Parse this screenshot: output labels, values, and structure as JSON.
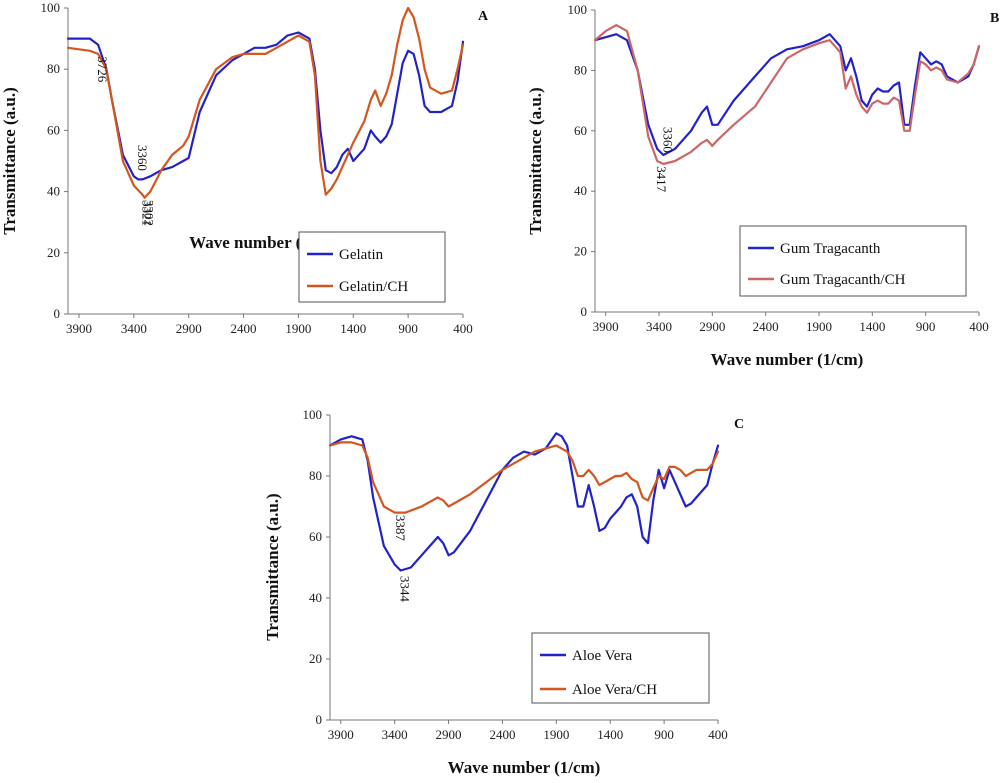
{
  "chart_data": [
    {
      "panel": "A",
      "type": "line",
      "xlabel": "Wave number  (1/cm)",
      "ylabel": "Transmittance  (a.u.)",
      "xlim": [
        4000,
        400
      ],
      "ylim": [
        0,
        100
      ],
      "xticks": [
        3900,
        3400,
        2900,
        2400,
        1900,
        1400,
        900,
        400
      ],
      "yticks": [
        0,
        20,
        40,
        60,
        80,
        100
      ],
      "legend": "bottom-right",
      "series": [
        {
          "name": "Gelatin",
          "color": "#2222cc",
          "x": [
            4000,
            3800,
            3726,
            3650,
            3600,
            3500,
            3400,
            3360,
            3321,
            3250,
            3150,
            3050,
            2950,
            2900,
            2800,
            2650,
            2500,
            2400,
            2300,
            2200,
            2100,
            2000,
            1900,
            1800,
            1750,
            1700,
            1650,
            1600,
            1550,
            1500,
            1450,
            1400,
            1300,
            1240,
            1200,
            1150,
            1100,
            1050,
            1000,
            950,
            900,
            850,
            800,
            750,
            700,
            600,
            500,
            450,
            400
          ],
          "y": [
            90,
            90,
            88,
            80,
            70,
            52,
            45,
            44,
            44,
            45,
            47,
            48,
            50,
            51,
            66,
            78,
            83,
            85,
            87,
            87,
            88,
            91,
            92,
            90,
            80,
            60,
            47,
            46,
            48,
            52,
            54,
            50,
            54,
            60,
            58,
            56,
            58,
            62,
            72,
            82,
            86,
            85,
            78,
            68,
            66,
            66,
            68,
            76,
            89
          ]
        },
        {
          "name": "Gelatin/CH",
          "color": "#d2561e",
          "x": [
            4000,
            3800,
            3726,
            3650,
            3600,
            3500,
            3400,
            3321,
            3302,
            3250,
            3150,
            3050,
            2950,
            2900,
            2800,
            2650,
            2500,
            2400,
            2300,
            2200,
            2100,
            2000,
            1900,
            1800,
            1750,
            1700,
            1650,
            1600,
            1550,
            1500,
            1450,
            1400,
            1300,
            1240,
            1200,
            1150,
            1100,
            1050,
            1000,
            950,
            900,
            850,
            800,
            750,
            700,
            600,
            500,
            450,
            400
          ],
          "y": [
            87,
            86,
            85,
            80,
            70,
            50,
            42,
            39,
            38,
            40,
            47,
            52,
            55,
            58,
            70,
            80,
            84,
            85,
            85,
            85,
            87,
            89,
            91,
            89,
            78,
            50,
            39,
            41,
            44,
            48,
            52,
            56,
            63,
            70,
            73,
            68,
            72,
            78,
            88,
            96,
            100,
            97,
            90,
            80,
            74,
            72,
            73,
            80,
            88
          ]
        }
      ],
      "annotations": [
        "3726",
        "3360",
        "3321",
        "3302"
      ]
    },
    {
      "panel": "B",
      "type": "line",
      "xlabel": "Wave number  (1/cm)",
      "ylabel": "Transmittance  (a.u.)",
      "xlim": [
        4000,
        400
      ],
      "ylim": [
        0,
        100
      ],
      "xticks": [
        3900,
        3400,
        2900,
        2400,
        1900,
        1400,
        900,
        400
      ],
      "yticks": [
        0,
        20,
        40,
        60,
        80,
        100
      ],
      "legend": "bottom-right",
      "series": [
        {
          "name": "Gum Tragacanth",
          "color": "#2222cc",
          "x": [
            4000,
            3900,
            3800,
            3700,
            3600,
            3500,
            3417,
            3360,
            3250,
            3100,
            3000,
            2950,
            2900,
            2850,
            2700,
            2500,
            2350,
            2200,
            2050,
            1900,
            1800,
            1700,
            1650,
            1600,
            1550,
            1500,
            1450,
            1400,
            1350,
            1300,
            1250,
            1200,
            1150,
            1100,
            1050,
            1000,
            950,
            900,
            850,
            800,
            750,
            700,
            600,
            500,
            450,
            400
          ],
          "y": [
            90,
            91,
            92,
            90,
            80,
            62,
            54,
            52,
            54,
            60,
            66,
            68,
            62,
            62,
            70,
            78,
            84,
            87,
            88,
            90,
            92,
            88,
            80,
            84,
            78,
            70,
            68,
            72,
            74,
            73,
            73,
            75,
            76,
            62,
            62,
            75,
            86,
            84,
            82,
            83,
            82,
            78,
            76,
            78,
            82,
            88
          ]
        },
        {
          "name": "Gum Tragacanth/CH",
          "color": "#cc6666",
          "x": [
            4000,
            3900,
            3800,
            3700,
            3600,
            3500,
            3417,
            3360,
            3250,
            3100,
            3000,
            2950,
            2900,
            2850,
            2700,
            2500,
            2350,
            2200,
            2050,
            1900,
            1800,
            1700,
            1650,
            1600,
            1550,
            1500,
            1450,
            1400,
            1350,
            1300,
            1250,
            1200,
            1150,
            1100,
            1050,
            1000,
            950,
            900,
            850,
            800,
            750,
            700,
            600,
            500,
            450,
            400
          ],
          "y": [
            90,
            93,
            95,
            93,
            80,
            58,
            50,
            49,
            50,
            53,
            56,
            57,
            55,
            57,
            62,
            68,
            76,
            84,
            87,
            89,
            90,
            86,
            74,
            78,
            72,
            68,
            66,
            69,
            70,
            69,
            69,
            71,
            70,
            60,
            60,
            72,
            83,
            82,
            80,
            81,
            80,
            77,
            76,
            79,
            82,
            88
          ]
        }
      ],
      "annotations": [
        "3360",
        "3417"
      ]
    },
    {
      "panel": "C",
      "type": "line",
      "xlabel": "Wave number  (1/cm)",
      "ylabel": "Transmittance  (a.u.)",
      "xlim": [
        4000,
        400
      ],
      "ylim": [
        0,
        100
      ],
      "xticks": [
        3900,
        3400,
        2900,
        2400,
        1900,
        1400,
        900,
        400
      ],
      "yticks": [
        0,
        20,
        40,
        60,
        80,
        100
      ],
      "legend": "bottom-right",
      "series": [
        {
          "name": "Aloe Vera",
          "color": "#2222cc",
          "x": [
            4000,
            3900,
            3800,
            3700,
            3650,
            3600,
            3500,
            3400,
            3344,
            3250,
            3150,
            3050,
            3000,
            2950,
            2900,
            2850,
            2700,
            2550,
            2400,
            2300,
            2200,
            2100,
            2000,
            1900,
            1850,
            1800,
            1750,
            1700,
            1650,
            1600,
            1550,
            1500,
            1450,
            1400,
            1350,
            1300,
            1250,
            1200,
            1150,
            1100,
            1050,
            1000,
            950,
            900,
            850,
            800,
            750,
            700,
            650,
            600,
            500,
            450,
            400
          ],
          "y": [
            90,
            92,
            93,
            92,
            85,
            73,
            57,
            51,
            49,
            50,
            54,
            58,
            60,
            58,
            54,
            55,
            62,
            72,
            82,
            86,
            88,
            87,
            89,
            94,
            93,
            90,
            80,
            70,
            70,
            77,
            70,
            62,
            63,
            66,
            68,
            70,
            73,
            74,
            70,
            60,
            58,
            72,
            82,
            76,
            82,
            78,
            74,
            70,
            71,
            73,
            77,
            84,
            90
          ]
        },
        {
          "name": "Aloe Vera/CH",
          "color": "#d2561e",
          "x": [
            4000,
            3900,
            3800,
            3700,
            3650,
            3600,
            3500,
            3400,
            3387,
            3300,
            3150,
            3050,
            3000,
            2950,
            2900,
            2850,
            2700,
            2550,
            2400,
            2300,
            2200,
            2100,
            2000,
            1900,
            1850,
            1800,
            1750,
            1700,
            1650,
            1600,
            1550,
            1500,
            1450,
            1400,
            1350,
            1300,
            1250,
            1200,
            1150,
            1100,
            1050,
            1000,
            950,
            900,
            850,
            800,
            750,
            700,
            650,
            600,
            500,
            450,
            400
          ],
          "y": [
            90,
            91,
            91,
            90,
            86,
            78,
            70,
            68,
            68,
            68,
            70,
            72,
            73,
            72,
            70,
            71,
            74,
            78,
            82,
            84,
            86,
            88,
            89,
            90,
            89,
            88,
            85,
            80,
            80,
            82,
            80,
            77,
            78,
            79,
            80,
            80,
            81,
            79,
            78,
            73,
            72,
            76,
            80,
            79,
            83,
            83,
            82,
            80,
            81,
            82,
            82,
            84,
            88
          ]
        }
      ],
      "annotations": [
        "3387",
        "3344"
      ]
    }
  ]
}
